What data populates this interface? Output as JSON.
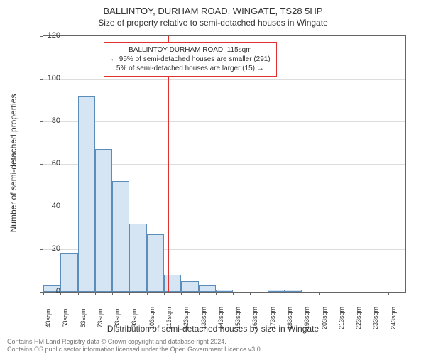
{
  "title": "BALLINTOY, DURHAM ROAD, WINGATE, TS28 5HP",
  "subtitle": "Size of property relative to semi-detached houses in Wingate",
  "ylabel": "Number of semi-detached properties",
  "xlabel": "Distribution of semi-detached houses by size in Wingate",
  "chart": {
    "type": "histogram",
    "categories": [
      "43sqm",
      "53sqm",
      "63sqm",
      "73sqm",
      "83sqm",
      "93sqm",
      "103sqm",
      "113sqm",
      "123sqm",
      "133sqm",
      "143sqm",
      "153sqm",
      "163sqm",
      "173sqm",
      "183sqm",
      "193sqm",
      "203sqm",
      "213sqm",
      "223sqm",
      "233sqm",
      "243sqm"
    ],
    "values": [
      3,
      18,
      92,
      67,
      52,
      32,
      27,
      8,
      5,
      3,
      1,
      0,
      0,
      1,
      1,
      0,
      0,
      0,
      0,
      0,
      0
    ],
    "bar_fill": "#d6e5f4",
    "bar_stroke": "#5b8db8",
    "background_color": "#ffffff",
    "grid_color": "#dddddd",
    "axis_color": "#666666",
    "ylim": [
      0,
      120
    ],
    "ytick_step": 20,
    "yticks": [
      0,
      20,
      40,
      60,
      80,
      100,
      120
    ],
    "ref_line_x_index": 7.2,
    "ref_line_color": "#e03030",
    "bar_width_ratio": 1.0,
    "title_fontsize": 13,
    "label_fontsize": 12,
    "tick_fontsize_x": 9,
    "tick_fontsize_y": 11
  },
  "info_box": {
    "line1": "BALLINTOY DURHAM ROAD: 115sqm",
    "line2": "← 95% of semi-detached houses are smaller (291)",
    "line3": "5% of semi-detached houses are larger (15) →",
    "border_color": "#e03030",
    "text_color": "#333333"
  },
  "footer": {
    "line1": "Contains HM Land Registry data © Crown copyright and database right 2024.",
    "line2": "Contains OS public sector information licensed under the Open Government Licence v3.0.",
    "text_color": "#777777"
  }
}
